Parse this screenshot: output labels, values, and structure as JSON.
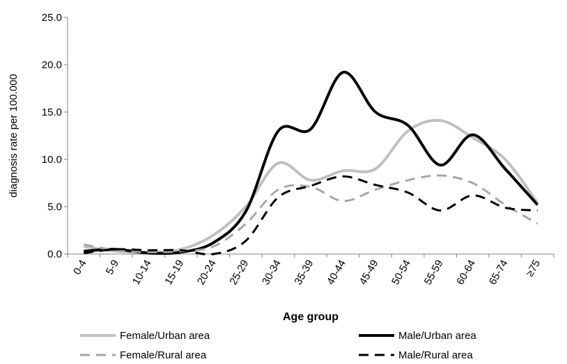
{
  "chart_data": {
    "type": "line",
    "xlabel": "Age group",
    "ylabel": "diagnosis rate per 100.000",
    "ylim": [
      0,
      25
    ],
    "yticks": [
      "0.0",
      "5.0",
      "10.0",
      "15.0",
      "20.0",
      "25.0"
    ],
    "grid": false,
    "legend_position": "bottom",
    "categories": [
      "0-4",
      "5-9",
      "10-14",
      "15-19",
      "20-24",
      "25-29",
      "30-34",
      "35-39",
      "40-44",
      "45-49",
      "50-54",
      "55-59",
      "60-64",
      "65-74",
      "≥75"
    ],
    "series": [
      {
        "name": "Female/Urban area",
        "color": "#c0c0c0",
        "style": "solid",
        "values": [
          0.8,
          0.3,
          0.2,
          0.5,
          2.0,
          5.0,
          9.6,
          7.8,
          8.8,
          9.0,
          13.0,
          14.1,
          12.3,
          10.0,
          5.4
        ]
      },
      {
        "name": "Male/Urban area",
        "color": "#000000",
        "style": "solid",
        "values": [
          0.3,
          0.5,
          0.1,
          0.2,
          1.2,
          4.5,
          13.0,
          13.2,
          19.2,
          15.0,
          13.6,
          9.4,
          12.6,
          9.0,
          5.2
        ]
      },
      {
        "name": "Female/Rural area",
        "color": "#a6a6a6",
        "style": "dashed",
        "values": [
          1.0,
          0.4,
          0.2,
          0.3,
          0.8,
          3.2,
          6.8,
          7.1,
          5.6,
          6.8,
          7.8,
          8.3,
          7.5,
          5.2,
          3.2
        ]
      },
      {
        "name": "Male/Rural area",
        "color": "#000000",
        "style": "dashed",
        "values": [
          0.1,
          0.5,
          0.4,
          0.4,
          0.0,
          1.4,
          6.0,
          7.2,
          8.2,
          7.3,
          6.5,
          4.6,
          6.2,
          4.9,
          4.6
        ]
      }
    ]
  }
}
